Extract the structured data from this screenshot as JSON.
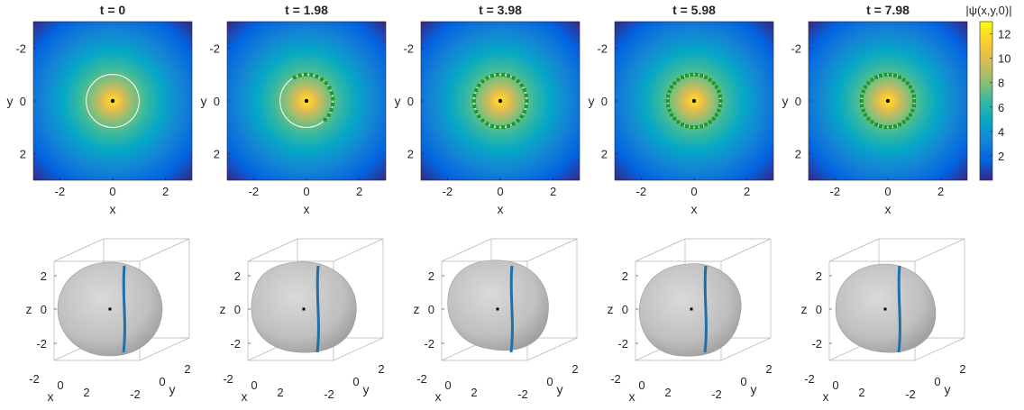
{
  "colors": {
    "parula": [
      "#352a87",
      "#0363e1",
      "#1485d4",
      "#06a7c6",
      "#38b99e",
      "#92bf73",
      "#d9ba56",
      "#fcce2e",
      "#f9fb0e"
    ],
    "ring_color": "#ffffff",
    "marker_color": "#1a9a2a",
    "vortex_color": "#1f6fa8",
    "surface_color": "#bdbdbd"
  },
  "chart_data": [
    {
      "type": "heatmap",
      "title": "t = 0",
      "xlabel": "x",
      "ylabel": "y",
      "x_ticks": [
        "-2",
        "0",
        "2"
      ],
      "y_ticks": [
        "-2",
        "0",
        "2"
      ],
      "xlim": [
        -3,
        3
      ],
      "ylim": [
        -3,
        3
      ],
      "vortex_ring_count": 0
    },
    {
      "type": "heatmap",
      "title": "t = 1.98",
      "xlabel": "x",
      "ylabel": "y",
      "x_ticks": [
        "-2",
        "0",
        "2"
      ],
      "y_ticks": [
        "-2",
        "0",
        "2"
      ],
      "xlim": [
        -3,
        3
      ],
      "ylim": [
        -3,
        3
      ],
      "vortex_ring_count": 14
    },
    {
      "type": "heatmap",
      "title": "t = 3.98",
      "xlabel": "x",
      "ylabel": "y",
      "x_ticks": [
        "-2",
        "0",
        "2"
      ],
      "y_ticks": [
        "-2",
        "0",
        "2"
      ],
      "xlim": [
        -3,
        3
      ],
      "ylim": [
        -3,
        3
      ],
      "vortex_ring_count": 30
    },
    {
      "type": "heatmap",
      "title": "t = 5.98",
      "xlabel": "x",
      "ylabel": "y",
      "x_ticks": [
        "-2",
        "0",
        "2"
      ],
      "y_ticks": [
        "-2",
        "0",
        "2"
      ],
      "xlim": [
        -3,
        3
      ],
      "ylim": [
        -3,
        3
      ],
      "vortex_ring_count": 34
    },
    {
      "type": "heatmap",
      "title": "t = 7.98",
      "xlabel": "x",
      "ylabel": "y",
      "x_ticks": [
        "-2",
        "0",
        "2"
      ],
      "y_ticks": [
        "-2",
        "0",
        "2"
      ],
      "xlim": [
        -3,
        3
      ],
      "ylim": [
        -3,
        3
      ],
      "vortex_ring_count": 34,
      "colorbar": {
        "label": "|ψ(x,y,0)|",
        "ticks": [
          "2",
          "4",
          "6",
          "8",
          "10",
          "12"
        ],
        "range": [
          0,
          13
        ]
      }
    }
  ],
  "surface_plots": [
    {
      "xlabel": "x",
      "ylabel": "y",
      "zlabel": "z",
      "z_ticks": [
        "2",
        "0",
        "-2"
      ],
      "x_ticks": [
        "-2",
        "0",
        "2"
      ],
      "y_ticks": [
        "2",
        "0",
        "-2"
      ]
    },
    {
      "xlabel": "x",
      "ylabel": "y",
      "zlabel": "z",
      "z_ticks": [
        "2",
        "0",
        "-2"
      ],
      "x_ticks": [
        "-2",
        "0",
        "2"
      ],
      "y_ticks": [
        "2",
        "0",
        "-2"
      ]
    },
    {
      "xlabel": "x",
      "ylabel": "y",
      "zlabel": "z",
      "z_ticks": [
        "2",
        "0",
        "-2"
      ],
      "x_ticks": [
        "-2",
        "0",
        "2"
      ],
      "y_ticks": [
        "2",
        "0",
        "-2"
      ]
    },
    {
      "xlabel": "x",
      "ylabel": "y",
      "zlabel": "z",
      "z_ticks": [
        "2",
        "0",
        "-2"
      ],
      "x_ticks": [
        "-2",
        "0",
        "2"
      ],
      "y_ticks": [
        "2",
        "0",
        "-2"
      ]
    },
    {
      "xlabel": "x",
      "ylabel": "y",
      "zlabel": "z",
      "z_ticks": [
        "2",
        "0",
        "-2"
      ],
      "x_ticks": [
        "-2",
        "0",
        "2"
      ],
      "y_ticks": [
        "2",
        "0",
        "-2"
      ]
    }
  ]
}
